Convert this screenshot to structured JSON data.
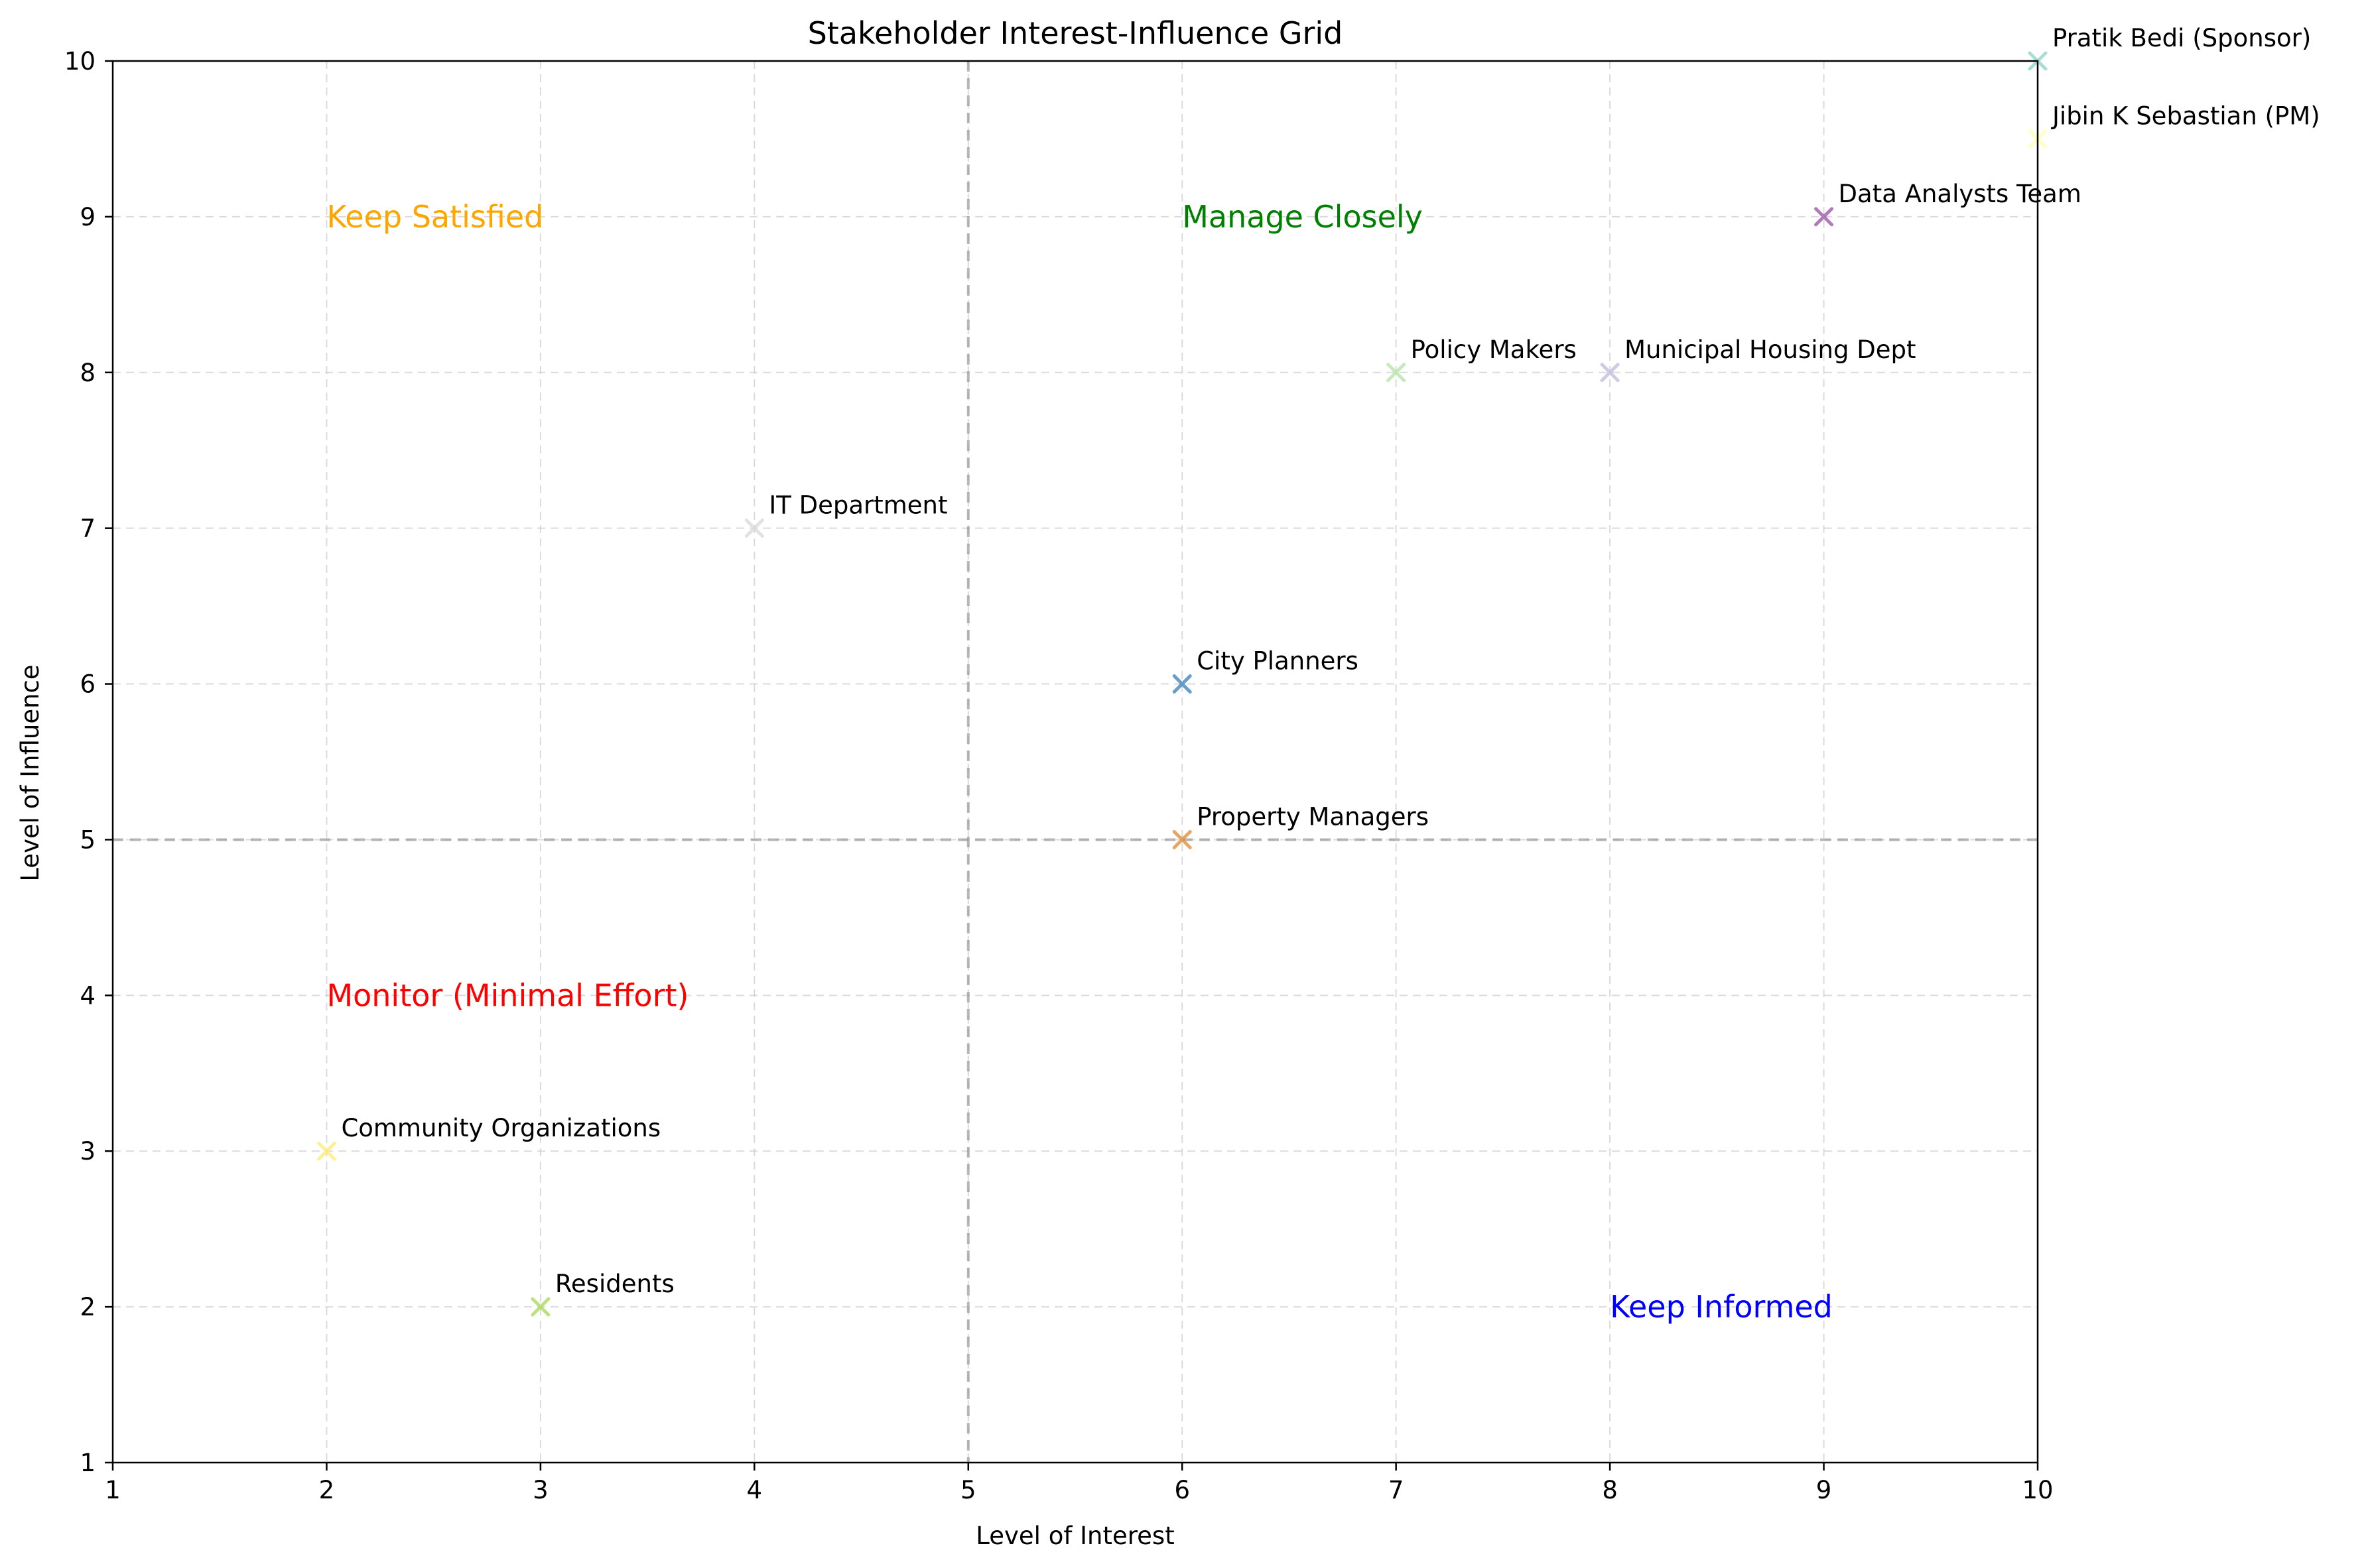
{
  "chart_data": {
    "type": "scatter",
    "title": "Stakeholder Interest-Influence Grid",
    "xlabel": "Level of Interest",
    "ylabel": "Level of Influence",
    "xlim": [
      1,
      10
    ],
    "ylim": [
      1,
      10
    ],
    "xticks": [
      1,
      2,
      3,
      4,
      5,
      6,
      7,
      8,
      9,
      10
    ],
    "yticks": [
      1,
      2,
      3,
      4,
      5,
      6,
      7,
      8,
      9,
      10
    ],
    "grid": true,
    "marker": "x",
    "quadrant_dividers": {
      "x": 5,
      "y": 5
    },
    "points": [
      {
        "label": "Pratik Bedi (Sponsor)",
        "x": 10,
        "y": 10,
        "color": "#8dd3c7"
      },
      {
        "label": "Jibin K Sebastian (PM)",
        "x": 10,
        "y": 9.5,
        "color": "#ffffb3"
      },
      {
        "label": "Data Analysts Team",
        "x": 9,
        "y": 9,
        "color": "#984ea3"
      },
      {
        "label": "Policy Makers",
        "x": 7,
        "y": 8,
        "color": "#b3e2a8"
      },
      {
        "label": "Municipal Housing Dept",
        "x": 8,
        "y": 8,
        "color": "#bebada"
      },
      {
        "label": "IT Department",
        "x": 4,
        "y": 7,
        "color": "#d9d9d9"
      },
      {
        "label": "City Planners",
        "x": 6,
        "y": 6,
        "color": "#377eb8"
      },
      {
        "label": "Property Managers",
        "x": 6,
        "y": 5,
        "color": "#e08a30"
      },
      {
        "label": "Community Organizations",
        "x": 2,
        "y": 3,
        "color": "#ffed6f"
      },
      {
        "label": "Residents",
        "x": 3,
        "y": 2,
        "color": "#a6d854"
      }
    ],
    "quadrant_labels": [
      {
        "text": "Keep Satisfied",
        "x": 2,
        "y": 9,
        "color": "#ffa500"
      },
      {
        "text": "Manage Closely",
        "x": 6,
        "y": 9,
        "color": "#008000"
      },
      {
        "text": "Monitor (Minimal Effort)",
        "x": 2,
        "y": 4,
        "color": "#ff0000"
      },
      {
        "text": "Keep Informed",
        "x": 8,
        "y": 2,
        "color": "#0000ff"
      }
    ]
  }
}
